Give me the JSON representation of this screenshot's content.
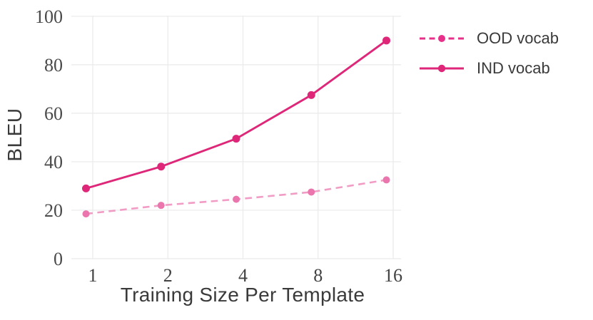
{
  "chart_data": {
    "type": "line",
    "title": "",
    "xlabel": "Training Size Per Template",
    "ylabel": "BLEU",
    "x_scale": "log2",
    "categories": [
      1,
      2,
      4,
      8,
      16
    ],
    "x_tick_labels": [
      "1",
      "2",
      "4",
      "8",
      "16"
    ],
    "y_ticks": [
      0,
      20,
      40,
      60,
      80,
      100
    ],
    "ylim": [
      0,
      100
    ],
    "grid": true,
    "background": "#ffffff",
    "grid_color": "#eaeaea",
    "legend_position": "outside upper right",
    "series": [
      {
        "name": "OOD vocab",
        "style": "dashed",
        "line_color": "#f09cc4",
        "marker_color": "#eb76ae",
        "legend_color": "#e8308a",
        "values": [
          18.5,
          22,
          24.5,
          27.5,
          32.5
        ]
      },
      {
        "name": "IND vocab",
        "style": "solid",
        "line_color": "#de2779",
        "marker_color": "#de2779",
        "legend_color": "#de2779",
        "values": [
          29,
          38,
          49.5,
          67.5,
          90
        ]
      }
    ]
  }
}
